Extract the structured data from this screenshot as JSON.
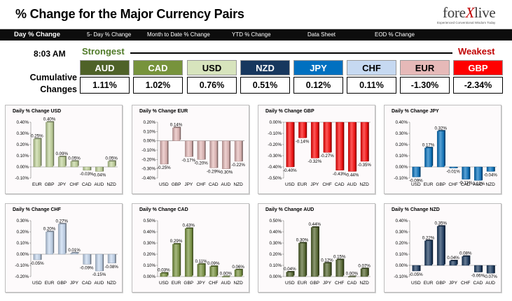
{
  "header": {
    "title": "% Change for the Major Currency Pairs",
    "logo": {
      "brand_a": "fore",
      "brand_x": "X",
      "brand_b": "live",
      "tagline": "Experienced Conventional Wisdom Today"
    }
  },
  "tabs": [
    {
      "label": "Day % Change",
      "active": true
    },
    {
      "label": "5- Day % Change",
      "active": false
    },
    {
      "label": "Month to Date % Change",
      "active": false
    },
    {
      "label": "YTD % Change",
      "active": false
    },
    {
      "label": "Data Sheet",
      "active": false
    },
    {
      "label": "EOD % Change",
      "active": false
    }
  ],
  "summary": {
    "time": "8:03 AM",
    "strongest_label": "Strongest",
    "weakest_label": "Weakest",
    "cumulative_label": "Cumulative Changes",
    "currencies": [
      {
        "code": "AUD",
        "value": "1.11%",
        "color": "#4f6228"
      },
      {
        "code": "CAD",
        "value": "1.02%",
        "color": "#77933c"
      },
      {
        "code": "USD",
        "value": "0.76%",
        "color": "#d7e4bd"
      },
      {
        "code": "NZD",
        "value": "0.51%",
        "color": "#17375e"
      },
      {
        "code": "JPY",
        "value": "0.12%",
        "color": "#0070c0"
      },
      {
        "code": "CHF",
        "value": "0.11%",
        "color": "#c6d9f1"
      },
      {
        "code": "EUR",
        "value": "-1.30%",
        "color": "#e6b9b8"
      },
      {
        "code": "GBP",
        "value": "-2.34%",
        "color": "#ff0000"
      }
    ]
  },
  "chart_data": [
    {
      "type": "bar",
      "title": "Daily % Change USD",
      "categories": [
        "EUR",
        "GBP",
        "JPY",
        "CHF",
        "CAD",
        "AUD",
        "NZD"
      ],
      "values": [
        0.25,
        0.4,
        0.09,
        0.05,
        -0.03,
        -0.04,
        0.05
      ],
      "labels": [
        "0.25%",
        "0.40%",
        "0.09%",
        "0.05%",
        "-0.03%",
        "-0.04%",
        "0.05%"
      ],
      "ylim": [
        -0.1,
        0.4
      ],
      "ticks": [
        "0.40%",
        "0.30%",
        "0.20%",
        "0.10%",
        "0.00%",
        "-0.10%"
      ],
      "color": "#c3d69b",
      "grid": false
    },
    {
      "type": "bar",
      "title": "Daily % Change EUR",
      "categories": [
        "USD",
        "GBP",
        "JPY",
        "CHF",
        "CAD",
        "AUD",
        "NZD"
      ],
      "values": [
        -0.25,
        0.14,
        -0.17,
        -0.2,
        -0.29,
        -0.3,
        -0.22
      ],
      "labels": [
        "-0.25%",
        "0.14%",
        "-0.17%",
        "-0.20%",
        "-0.29%",
        "-0.30%",
        "-0.22%"
      ],
      "ylim": [
        -0.4,
        0.2
      ],
      "ticks": [
        "0.20%",
        "0.10%",
        "0.00%",
        "-0.10%",
        "-0.20%",
        "-0.30%",
        "-0.40%"
      ],
      "color": "#e6b9b8",
      "grid": false
    },
    {
      "type": "bar",
      "title": "Daily % Change GBP",
      "categories": [
        "USD",
        "EUR",
        "JPY",
        "CHF",
        "CAD",
        "AUD",
        "NZD"
      ],
      "values": [
        -0.4,
        -0.14,
        -0.32,
        -0.27,
        -0.43,
        -0.44,
        -0.35
      ],
      "labels": [
        "-0.40%",
        "-0.14%",
        "-0.32%",
        "-0.27%",
        "-0.43%",
        "-0.44%",
        "-0.35%"
      ],
      "ylim": [
        -0.5,
        0.0
      ],
      "ticks": [
        "0.00%",
        "-0.10%",
        "-0.20%",
        "-0.30%",
        "-0.40%",
        "-0.50%"
      ],
      "color": "#ff0000",
      "grid": false
    },
    {
      "type": "bar",
      "title": "Daily % Change JPY",
      "categories": [
        "USD",
        "EUR",
        "GBP",
        "CHF",
        "CAD",
        "AUD",
        "NZD"
      ],
      "values": [
        -0.09,
        0.17,
        0.32,
        -0.01,
        -0.11,
        -0.12,
        -0.04
      ],
      "labels": [
        "-0.09%",
        "0.17%",
        "0.32%",
        "-0.01%",
        "-0.11%",
        "-0.12%",
        "-0.04%"
      ],
      "ylim": [
        -0.1,
        0.4
      ],
      "ticks": [
        "0.40%",
        "0.30%",
        "0.20%",
        "0.10%",
        "0.00%",
        "-0.10%"
      ],
      "color": "#0070c0",
      "grid": false
    },
    {
      "type": "bar",
      "title": "Daily % Change CHF",
      "categories": [
        "USD",
        "EUR",
        "GBP",
        "JPY",
        "CAD",
        "AUD",
        "NZD"
      ],
      "values": [
        -0.05,
        0.2,
        0.27,
        0.01,
        -0.09,
        -0.15,
        -0.08
      ],
      "labels": [
        "-0.05%",
        "0.20%",
        "0.27%",
        "0.01%",
        "-0.09%",
        "-0.15%",
        "-0.08%"
      ],
      "ylim": [
        -0.2,
        0.3
      ],
      "ticks": [
        "0.30%",
        "0.20%",
        "0.10%",
        "0.00%",
        "-0.10%",
        "-0.20%"
      ],
      "color": "#c6d9f1",
      "grid": false
    },
    {
      "type": "bar",
      "title": "Daily % Change CAD",
      "categories": [
        "USD",
        "EUR",
        "GBP",
        "JPY",
        "CHF",
        "AUD",
        "NZD"
      ],
      "values": [
        0.03,
        0.29,
        0.43,
        0.11,
        0.09,
        0.0,
        0.06
      ],
      "labels": [
        "0.03%",
        "0.29%",
        "0.43%",
        "0.11%",
        "0.09%",
        "0.00%",
        "0.06%"
      ],
      "ylim": [
        0.0,
        0.5
      ],
      "ticks": [
        "0.50%",
        "0.40%",
        "0.30%",
        "0.20%",
        "0.10%",
        "0.00%"
      ],
      "color": "#77933c",
      "grid": false
    },
    {
      "type": "bar",
      "title": "Daily % Change AUD",
      "categories": [
        "USD",
        "EUR",
        "GBP",
        "JPY",
        "CHF",
        "CAD",
        "NZD"
      ],
      "values": [
        0.04,
        0.3,
        0.44,
        0.12,
        0.15,
        0.0,
        0.07
      ],
      "labels": [
        "0.04%",
        "0.30%",
        "0.44%",
        "0.12%",
        "0.15%",
        "0.00%",
        "0.07%"
      ],
      "ylim": [
        0.0,
        0.5
      ],
      "ticks": [
        "0.50%",
        "0.40%",
        "0.30%",
        "0.20%",
        "0.10%",
        "0.00%"
      ],
      "color": "#4f6228",
      "grid": false
    },
    {
      "type": "bar",
      "title": "Daily % Change NZD",
      "categories": [
        "USD",
        "EUR",
        "GBP",
        "JPY",
        "CHF",
        "CAD",
        "AUD"
      ],
      "values": [
        -0.05,
        0.22,
        0.35,
        0.04,
        0.08,
        -0.06,
        -0.07
      ],
      "labels": [
        "-0.05%",
        "0.22%",
        "0.35%",
        "0.04%",
        "0.08%",
        "-0.06%",
        "-0.07%"
      ],
      "ylim": [
        -0.1,
        0.4
      ],
      "ticks": [
        "0.40%",
        "0.30%",
        "0.20%",
        "0.10%",
        "0.00%",
        "-0.10%"
      ],
      "color": "#17375e",
      "grid": false
    }
  ]
}
